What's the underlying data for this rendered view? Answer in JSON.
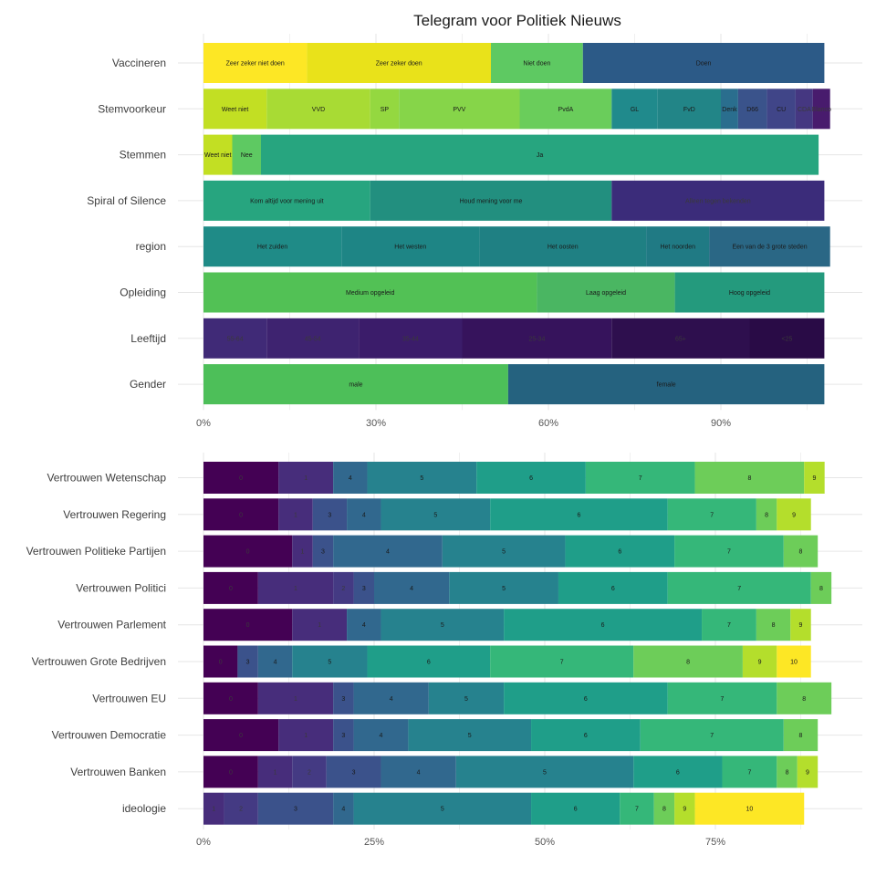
{
  "chart_data": [
    {
      "type": "bar",
      "orientation": "horizontal",
      "stacked": true,
      "title": "Telegram voor Politiek Nieuws",
      "xlabel": "",
      "ylabel": "",
      "xlim": [
        0,
        1.1
      ],
      "xticks": [
        0,
        0.3,
        0.6,
        0.9
      ],
      "xtick_labels": [
        "0%",
        "30%",
        "60%",
        "90%"
      ],
      "grid": true,
      "legend": "none",
      "rows": [
        {
          "label": "Vaccineren",
          "segments": [
            {
              "label": "Zeer zeker niet doen",
              "value": 0.18,
              "color": "#FDE725"
            },
            {
              "label": "Zeer zeker doen",
              "value": 0.32,
              "color": "#E9E21A"
            },
            {
              "label": "Niet doen",
              "value": 0.16,
              "color": "#5EC962"
            },
            {
              "label": "Doen",
              "value": 0.42,
              "color": "#2C5A87"
            }
          ]
        },
        {
          "label": "Stemvoorkeur",
          "segments": [
            {
              "label": "Weet niet",
              "value": 0.11,
              "color": "#C2DF23"
            },
            {
              "label": "VVD",
              "value": 0.18,
              "color": "#A8DB34"
            },
            {
              "label": "SP",
              "value": 0.05,
              "color": "#94D840"
            },
            {
              "label": "PVV",
              "value": 0.21,
              "color": "#86D549"
            },
            {
              "label": "PvdA",
              "value": 0.16,
              "color": "#6ACD5B"
            },
            {
              "label": "GL",
              "value": 0.08,
              "color": "#208A8C"
            },
            {
              "label": "FvD",
              "value": 0.11,
              "color": "#228587"
            },
            {
              "label": "Denk",
              "value": 0.03,
              "color": "#2A6E8E"
            },
            {
              "label": "D66",
              "value": 0.05,
              "color": "#3A538B"
            },
            {
              "label": "CU",
              "value": 0.05,
              "color": "#404588"
            },
            {
              "label": "CDA",
              "value": 0.03,
              "color": "#453781"
            },
            {
              "label": "Blanco",
              "value": 0.03,
              "color": "#481B6D"
            }
          ]
        },
        {
          "label": "Stemmen",
          "segments": [
            {
              "label": "Weet niet",
              "value": 0.05,
              "color": "#C2DF23"
            },
            {
              "label": "Nee",
              "value": 0.05,
              "color": "#5EC962"
            },
            {
              "label": "Ja",
              "value": 0.97,
              "color": "#27A57F"
            }
          ]
        },
        {
          "label": "Spiral of Silence",
          "segments": [
            {
              "label": "Kom altijd voor mening uit",
              "value": 0.29,
              "color": "#27A57F"
            },
            {
              "label": "Houd mening voor me",
              "value": 0.42,
              "color": "#228F7F"
            },
            {
              "label": "Alleen tegen bekenden",
              "value": 0.37,
              "color": "#3B2C7A"
            }
          ]
        },
        {
          "label": "region",
          "segments": [
            {
              "label": "Het zuiden",
              "value": 0.24,
              "color": "#1F8B87"
            },
            {
              "label": "Het westen",
              "value": 0.24,
              "color": "#1E8585"
            },
            {
              "label": "Het oosten",
              "value": 0.29,
              "color": "#1F8083"
            },
            {
              "label": "Het noorden",
              "value": 0.11,
              "color": "#207A84"
            },
            {
              "label": "Een van de 3 grote steden",
              "value": 0.21,
              "color": "#2A6785"
            }
          ]
        },
        {
          "label": "Opleiding",
          "segments": [
            {
              "label": "Medium opgeleid",
              "value": 0.58,
              "color": "#52C155"
            },
            {
              "label": "Laag opgeleid",
              "value": 0.24,
              "color": "#4AB662"
            },
            {
              "label": "Hoog opgeleid",
              "value": 0.26,
              "color": "#249A7D"
            }
          ]
        },
        {
          "label": "Leeftijd",
          "segments": [
            {
              "label": "55-64",
              "value": 0.11,
              "color": "#402A77"
            },
            {
              "label": "45-54",
              "value": 0.16,
              "color": "#3E2370"
            },
            {
              "label": "35-44",
              "value": 0.18,
              "color": "#3B1C6A"
            },
            {
              "label": "25-34",
              "value": 0.26,
              "color": "#36135C"
            },
            {
              "label": "65+",
              "value": 0.24,
              "color": "#2E0F4E"
            },
            {
              "label": "<25",
              "value": 0.13,
              "color": "#290B46"
            }
          ]
        },
        {
          "label": "Gender",
          "segments": [
            {
              "label": "male",
              "value": 0.53,
              "color": "#4DBF59"
            },
            {
              "label": "female",
              "value": 0.55,
              "color": "#25627F"
            }
          ]
        }
      ]
    },
    {
      "type": "bar",
      "orientation": "horizontal",
      "stacked": true,
      "title": "",
      "xlabel": "",
      "ylabel": "",
      "xlim": [
        0,
        0.92
      ],
      "xticks": [
        0,
        0.25,
        0.5,
        0.75
      ],
      "xtick_labels": [
        "0%",
        "25%",
        "50%",
        "75%"
      ],
      "grid": true,
      "legend": "none",
      "rows": [
        {
          "label": "Vertrouwen Wetenschap",
          "segments": [
            {
              "label": "0",
              "value": 0.11,
              "color": "#440154"
            },
            {
              "label": "1",
              "value": 0.08,
              "color": "#472D7B"
            },
            {
              "label": "4",
              "value": 0.05,
              "color": "#31688E"
            },
            {
              "label": "5",
              "value": 0.16,
              "color": "#26828E"
            },
            {
              "label": "6",
              "value": 0.16,
              "color": "#1F9E89"
            },
            {
              "label": "7",
              "value": 0.16,
              "color": "#35B779"
            },
            {
              "label": "8",
              "value": 0.16,
              "color": "#6DCD59"
            },
            {
              "label": "9",
              "value": 0.03,
              "color": "#B4DE2C"
            }
          ]
        },
        {
          "label": "Vertrouwen Regering",
          "segments": [
            {
              "label": "0",
              "value": 0.11,
              "color": "#440154"
            },
            {
              "label": "1",
              "value": 0.05,
              "color": "#472D7B"
            },
            {
              "label": "3",
              "value": 0.05,
              "color": "#3B528B"
            },
            {
              "label": "4",
              "value": 0.05,
              "color": "#31688E"
            },
            {
              "label": "5",
              "value": 0.16,
              "color": "#26828E"
            },
            {
              "label": "6",
              "value": 0.26,
              "color": "#1F9E89"
            },
            {
              "label": "7",
              "value": 0.13,
              "color": "#35B779"
            },
            {
              "label": "8",
              "value": 0.03,
              "color": "#6DCD59"
            },
            {
              "label": "9",
              "value": 0.05,
              "color": "#B4DE2C"
            }
          ]
        },
        {
          "label": "Vertrouwen Politieke Partijen",
          "segments": [
            {
              "label": "0",
              "value": 0.13,
              "color": "#440154"
            },
            {
              "label": "1",
              "value": 0.03,
              "color": "#472D7B"
            },
            {
              "label": "3",
              "value": 0.03,
              "color": "#3B528B"
            },
            {
              "label": "4",
              "value": 0.16,
              "color": "#31688E"
            },
            {
              "label": "5",
              "value": 0.18,
              "color": "#26828E"
            },
            {
              "label": "6",
              "value": 0.16,
              "color": "#1F9E89"
            },
            {
              "label": "7",
              "value": 0.16,
              "color": "#35B779"
            },
            {
              "label": "8",
              "value": 0.05,
              "color": "#6DCD59"
            }
          ]
        },
        {
          "label": "Vertrouwen Politici",
          "segments": [
            {
              "label": "0",
              "value": 0.08,
              "color": "#440154"
            },
            {
              "label": "1",
              "value": 0.11,
              "color": "#472D7B"
            },
            {
              "label": "2",
              "value": 0.03,
              "color": "#443A83"
            },
            {
              "label": "3",
              "value": 0.03,
              "color": "#3B528B"
            },
            {
              "label": "4",
              "value": 0.11,
              "color": "#31688E"
            },
            {
              "label": "5",
              "value": 0.16,
              "color": "#26828E"
            },
            {
              "label": "6",
              "value": 0.16,
              "color": "#1F9E89"
            },
            {
              "label": "7",
              "value": 0.21,
              "color": "#35B779"
            },
            {
              "label": "8",
              "value": 0.03,
              "color": "#6DCD59"
            }
          ]
        },
        {
          "label": "Vertrouwen Parlement",
          "segments": [
            {
              "label": "0",
              "value": 0.13,
              "color": "#440154"
            },
            {
              "label": "1",
              "value": 0.08,
              "color": "#472D7B"
            },
            {
              "label": "4",
              "value": 0.05,
              "color": "#31688E"
            },
            {
              "label": "5",
              "value": 0.18,
              "color": "#26828E"
            },
            {
              "label": "6",
              "value": 0.29,
              "color": "#1F9E89"
            },
            {
              "label": "7",
              "value": 0.08,
              "color": "#35B779"
            },
            {
              "label": "8",
              "value": 0.05,
              "color": "#6DCD59"
            },
            {
              "label": "9",
              "value": 0.03,
              "color": "#B4DE2C"
            }
          ]
        },
        {
          "label": "Vertrouwen Grote Bedrijven",
          "segments": [
            {
              "label": "0",
              "value": 0.05,
              "color": "#440154"
            },
            {
              "label": "3",
              "value": 0.03,
              "color": "#3B528B"
            },
            {
              "label": "4",
              "value": 0.05,
              "color": "#31688E"
            },
            {
              "label": "5",
              "value": 0.11,
              "color": "#26828E"
            },
            {
              "label": "6",
              "value": 0.18,
              "color": "#1F9E89"
            },
            {
              "label": "7",
              "value": 0.21,
              "color": "#35B779"
            },
            {
              "label": "8",
              "value": 0.16,
              "color": "#6DCD59"
            },
            {
              "label": "9",
              "value": 0.05,
              "color": "#B4DE2C"
            },
            {
              "label": "10",
              "value": 0.05,
              "color": "#FDE725"
            }
          ]
        },
        {
          "label": "Vertrouwen EU",
          "segments": [
            {
              "label": "0",
              "value": 0.08,
              "color": "#440154"
            },
            {
              "label": "1",
              "value": 0.11,
              "color": "#472D7B"
            },
            {
              "label": "3",
              "value": 0.03,
              "color": "#3B528B"
            },
            {
              "label": "4",
              "value": 0.11,
              "color": "#31688E"
            },
            {
              "label": "5",
              "value": 0.11,
              "color": "#26828E"
            },
            {
              "label": "6",
              "value": 0.24,
              "color": "#1F9E89"
            },
            {
              "label": "7",
              "value": 0.16,
              "color": "#35B779"
            },
            {
              "label": "8",
              "value": 0.08,
              "color": "#6DCD59"
            }
          ]
        },
        {
          "label": "Vertrouwen Democratie",
          "segments": [
            {
              "label": "0",
              "value": 0.11,
              "color": "#440154"
            },
            {
              "label": "1",
              "value": 0.08,
              "color": "#472D7B"
            },
            {
              "label": "3",
              "value": 0.03,
              "color": "#3B528B"
            },
            {
              "label": "4",
              "value": 0.08,
              "color": "#31688E"
            },
            {
              "label": "5",
              "value": 0.18,
              "color": "#26828E"
            },
            {
              "label": "6",
              "value": 0.16,
              "color": "#1F9E89"
            },
            {
              "label": "7",
              "value": 0.21,
              "color": "#35B779"
            },
            {
              "label": "8",
              "value": 0.05,
              "color": "#6DCD59"
            }
          ]
        },
        {
          "label": "Vertrouwen Banken",
          "segments": [
            {
              "label": "0",
              "value": 0.08,
              "color": "#440154"
            },
            {
              "label": "1",
              "value": 0.05,
              "color": "#472D7B"
            },
            {
              "label": "2",
              "value": 0.05,
              "color": "#443A83"
            },
            {
              "label": "3",
              "value": 0.08,
              "color": "#3B528B"
            },
            {
              "label": "4",
              "value": 0.11,
              "color": "#31688E"
            },
            {
              "label": "5",
              "value": 0.26,
              "color": "#26828E"
            },
            {
              "label": "6",
              "value": 0.13,
              "color": "#1F9E89"
            },
            {
              "label": "7",
              "value": 0.08,
              "color": "#35B779"
            },
            {
              "label": "8",
              "value": 0.03,
              "color": "#6DCD59"
            },
            {
              "label": "9",
              "value": 0.03,
              "color": "#B4DE2C"
            }
          ]
        },
        {
          "label": "ideologie",
          "segments": [
            {
              "label": "1",
              "value": 0.03,
              "color": "#472D7B"
            },
            {
              "label": "2",
              "value": 0.05,
              "color": "#443A83"
            },
            {
              "label": "3",
              "value": 0.11,
              "color": "#3B528B"
            },
            {
              "label": "4",
              "value": 0.03,
              "color": "#31688E"
            },
            {
              "label": "5",
              "value": 0.26,
              "color": "#26828E"
            },
            {
              "label": "6",
              "value": 0.13,
              "color": "#1F9E89"
            },
            {
              "label": "7",
              "value": 0.05,
              "color": "#35B779"
            },
            {
              "label": "8",
              "value": 0.03,
              "color": "#6DCD59"
            },
            {
              "label": "9",
              "value": 0.03,
              "color": "#B4DE2C"
            },
            {
              "label": "10",
              "value": 0.16,
              "color": "#FDE725"
            }
          ]
        }
      ]
    }
  ]
}
